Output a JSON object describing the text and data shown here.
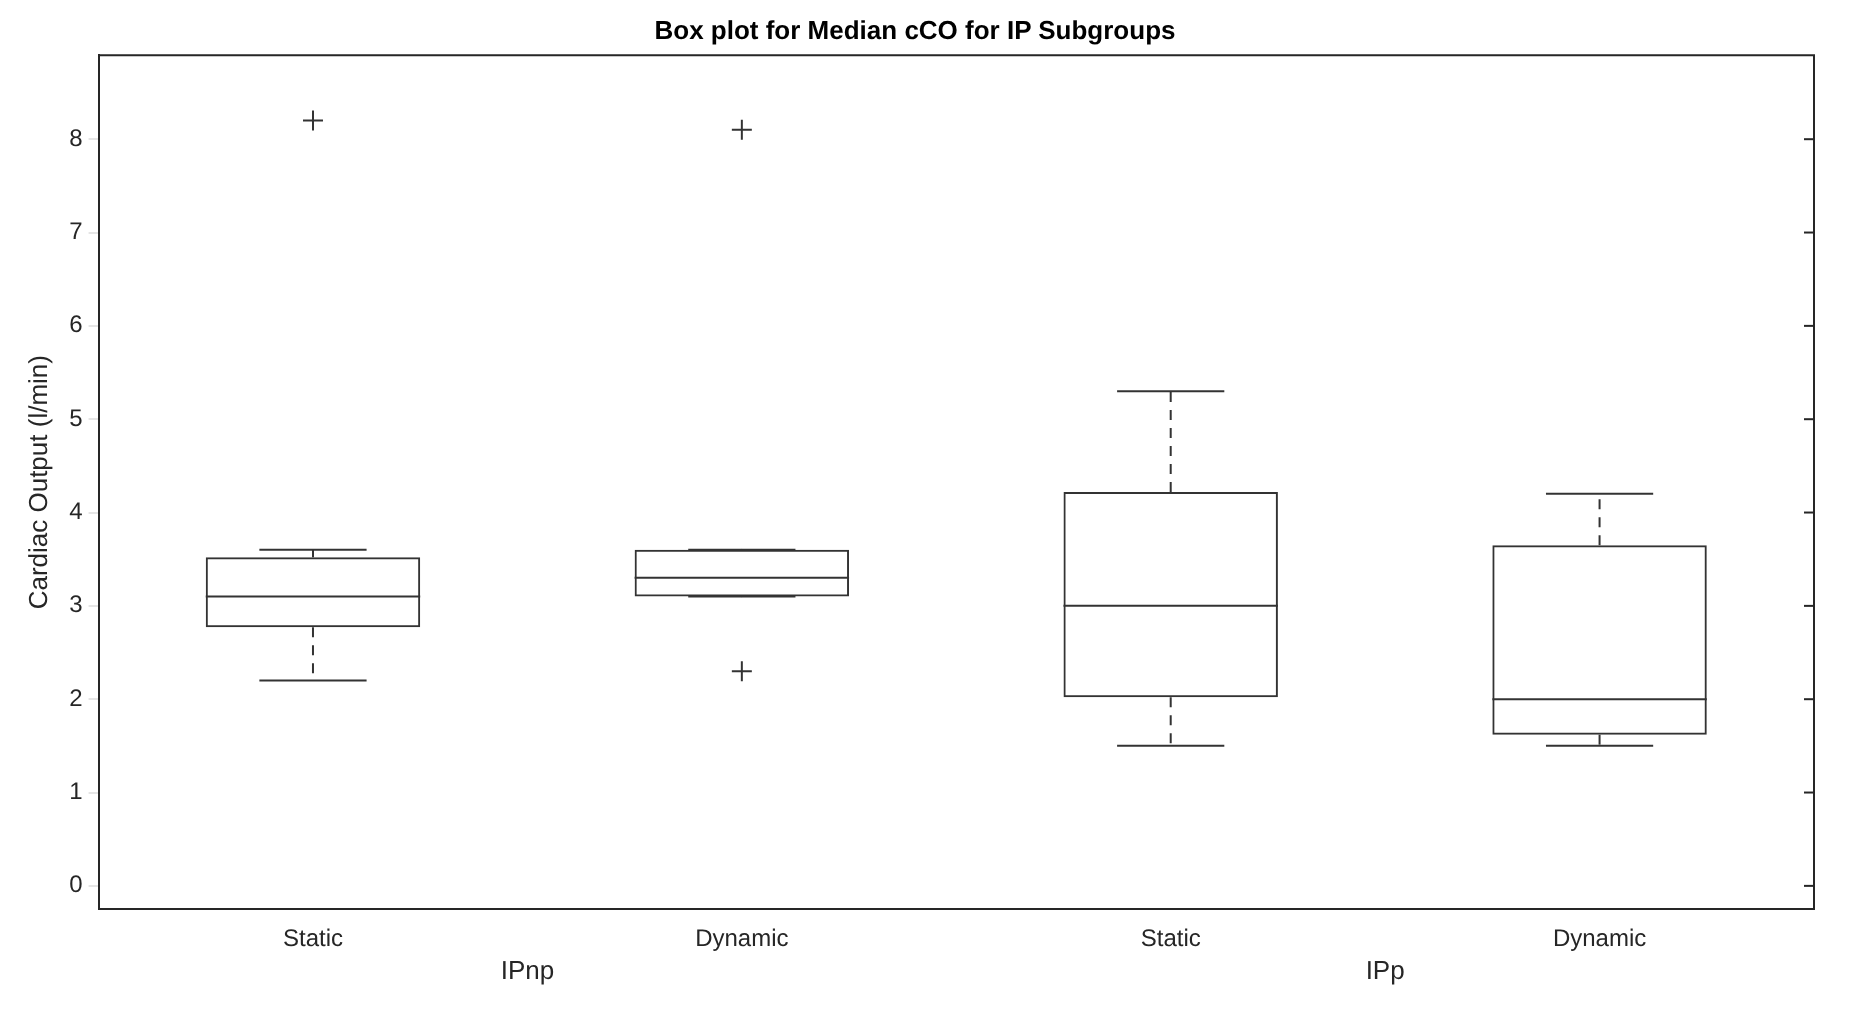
{
  "chart_data": {
    "type": "box",
    "title": "Box plot for Median cCO for IP Subgroups",
    "ylabel": "Cardiac Output (l/min)",
    "categories": [
      "Static",
      "Dynamic",
      "Static",
      "Dynamic"
    ],
    "annotations": [
      "IPnp",
      "IPp"
    ],
    "boxes": [
      {
        "low": 2.2,
        "q1": 2.77,
        "median": 3.1,
        "q3": 3.52,
        "high": 3.6,
        "outliers": [
          8.2
        ]
      },
      {
        "low": 3.1,
        "q1": 3.1,
        "median": 3.3,
        "q3": 3.6,
        "high": 3.6,
        "outliers": [
          2.3,
          8.1
        ]
      },
      {
        "low": 1.5,
        "q1": 2.02,
        "median": 3.0,
        "q3": 4.22,
        "high": 5.3
      },
      {
        "low": 1.5,
        "q1": 1.62,
        "median": 2.0,
        "q3": 3.65,
        "high": 4.2
      }
    ],
    "color": "#333333",
    "ylim": [
      -0.25,
      8.9
    ],
    "yticks": [
      0,
      1,
      2,
      3,
      4,
      5,
      6,
      7,
      8
    ],
    "grid": false,
    "legend": false
  }
}
